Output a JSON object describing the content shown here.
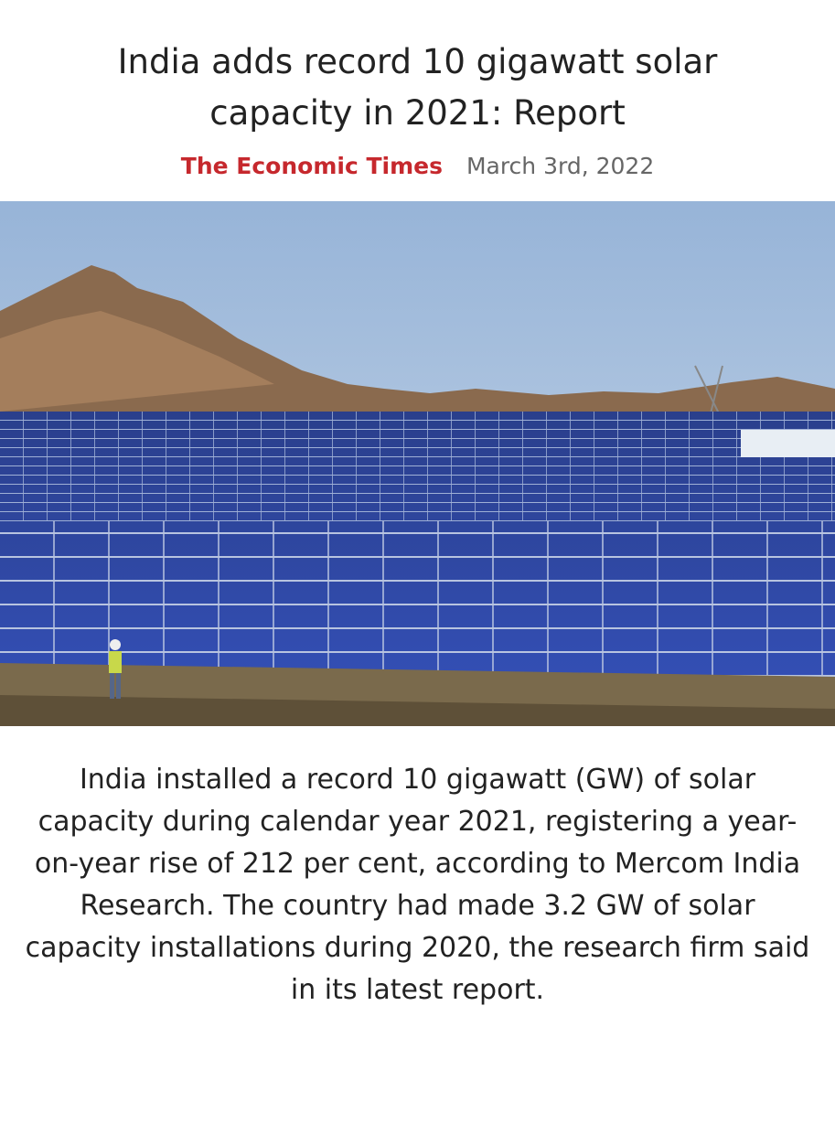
{
  "header": {
    "title": "India adds record 10 gigawatt solar capacity in 2021: Report",
    "source": "The Economic Times",
    "date": "March 3rd, 2022"
  },
  "body": {
    "text": "India installed a record 10 gigawatt (GW) of solar capacity during calendar year 2021, registering a year-on-year rise of 212 per cent, according to Mercom India Research. The country had made 3.2 GW of solar capacity installations during 2020, the research firm said in its latest report."
  }
}
